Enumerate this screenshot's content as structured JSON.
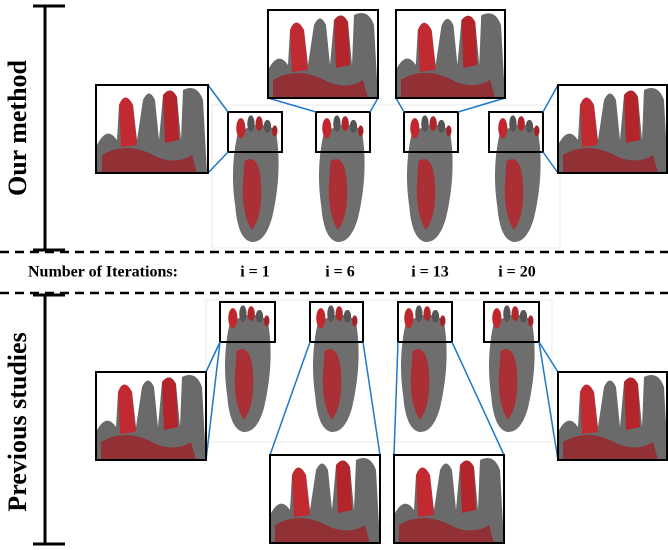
{
  "rows": [
    "Our method",
    "Previous studies"
  ],
  "axis": {
    "title": "Number of Iterations:",
    "iterations": [
      "i = 1",
      "i = 6",
      "i = 13",
      "i = 20"
    ]
  }
}
